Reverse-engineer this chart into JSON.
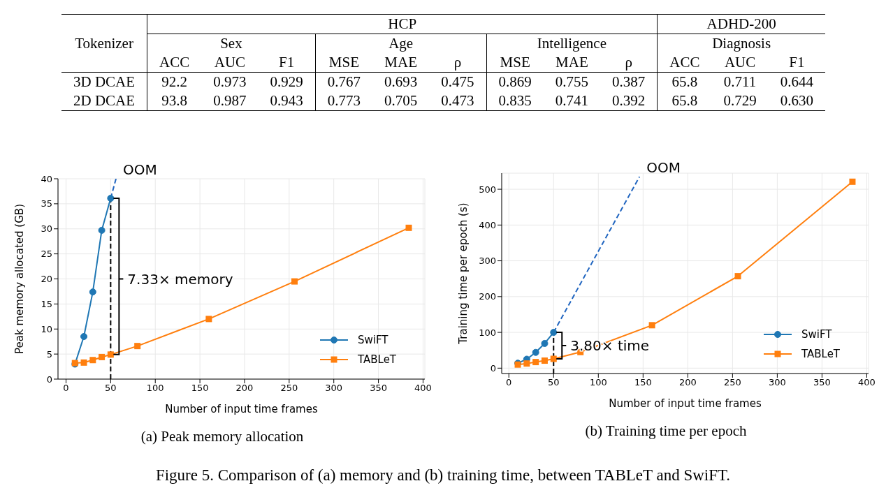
{
  "chart_data": [
    {
      "type": "heatmap",
      "ylabel": "Tokenizer",
      "annotations": [
        "HCP",
        "ADHD-200",
        "Sex",
        "Age",
        "Intelligence",
        "Diagnosis"
      ],
      "categories": [
        "ACC",
        "AUC",
        "F1",
        "MSE",
        "MAE",
        "ρ",
        "MSE",
        "MAE",
        "ρ",
        "ACC",
        "AUC",
        "F1"
      ],
      "y_categories": [
        "3D DCAE",
        "2D DCAE"
      ],
      "cells": [
        [
          92.2,
          0.973,
          0.929,
          0.767,
          0.693,
          0.475,
          0.869,
          0.755,
          0.387,
          65.8,
          0.711,
          0.644
        ],
        [
          93.8,
          0.987,
          0.943,
          0.773,
          0.705,
          0.473,
          0.835,
          0.741,
          0.392,
          65.8,
          0.729,
          0.63
        ]
      ],
      "cell_labels": [
        [
          "92.2",
          "0.973",
          "0.929",
          "0.767",
          "0.693",
          "0.475",
          "0.869",
          "0.755",
          "0.387",
          "65.8",
          "0.711",
          "0.644"
        ],
        [
          "93.8",
          "0.987",
          "0.943",
          "0.773",
          "0.705",
          "0.473",
          "0.835",
          "0.741",
          "0.392",
          "65.8",
          "0.729",
          "0.630"
        ]
      ]
    },
    {
      "type": "line",
      "title": "(a) Peak memory allocation",
      "xlabel": "Number of input time frames",
      "ylabel": "Peak memory allocated (GB)",
      "xlim": [
        -9,
        402
      ],
      "xticks": [
        0,
        50,
        100,
        150,
        200,
        250,
        300,
        350,
        400
      ],
      "ylim": [
        0,
        40
      ],
      "yticks": [
        0,
        5,
        10,
        15,
        20,
        25,
        30,
        35,
        40
      ],
      "grid": true,
      "legend": "bottom right",
      "series": [
        {
          "name": "SwiFT",
          "color": "#1f77b4",
          "marker": "circle",
          "x": [
            10,
            20,
            30,
            40,
            50
          ],
          "values": [
            3.0,
            8.5,
            17.4,
            29.7,
            36.1
          ]
        },
        {
          "name": "TABLeT",
          "color": "#ff7f0e",
          "marker": "square",
          "x": [
            10,
            20,
            30,
            40,
            50,
            80,
            160,
            256,
            384
          ],
          "values": [
            3.2,
            3.3,
            3.8,
            4.4,
            4.9,
            6.6,
            12.0,
            19.5,
            30.2
          ]
        },
        {
          "color": "#2065c0",
          "marker": "none",
          "line_style": "dashed",
          "x": [
            50,
            56
          ],
          "values": [
            36.1,
            40
          ]
        }
      ],
      "ref_lines": [
        {
          "axis": "x",
          "value": 50,
          "color": "#000000",
          "line_style": "dashed"
        }
      ],
      "annotations": [
        "OOM",
        {
          "text": "7.33× memory",
          "x": 50,
          "y": 20
        }
      ]
    },
    {
      "type": "line",
      "title": "(b) Training time per epoch",
      "xlabel": "Number of input time frames",
      "ylabel": "Training time per epoch (s)",
      "xlim": [
        -8,
        402
      ],
      "xticks": [
        0,
        50,
        100,
        150,
        200,
        250,
        300,
        350,
        400
      ],
      "ylim": [
        -15,
        545
      ],
      "yticks": [
        0,
        100,
        200,
        300,
        400,
        500
      ],
      "grid": true,
      "legend": "bottom right",
      "series": [
        {
          "name": "SwiFT",
          "color": "#1f77b4",
          "marker": "circle",
          "x": [
            10,
            20,
            30,
            40,
            50
          ],
          "values": [
            14,
            25,
            44,
            69,
            100
          ]
        },
        {
          "name": "TABLeT",
          "color": "#ff7f0e",
          "marker": "square",
          "x": [
            10,
            20,
            30,
            40,
            50,
            80,
            160,
            256,
            384
          ],
          "values": [
            10,
            13,
            17,
            21,
            26,
            45,
            120,
            257,
            521
          ]
        },
        {
          "color": "#2065c0",
          "marker": "none",
          "line_style": "dashed",
          "x": [
            50,
            146
          ],
          "values": [
            100,
            535
          ]
        }
      ],
      "ref_lines": [
        {
          "axis": "x",
          "value": 50,
          "color": "#000000",
          "line_style": "dashed"
        }
      ],
      "annotations": [
        "OOM",
        {
          "text": "3.80× time",
          "x": 50,
          "y": 63
        },
        "Figure 5. Comparison of (a) memory and (b) training time, between TABLeT and SwiFT."
      ]
    }
  ]
}
